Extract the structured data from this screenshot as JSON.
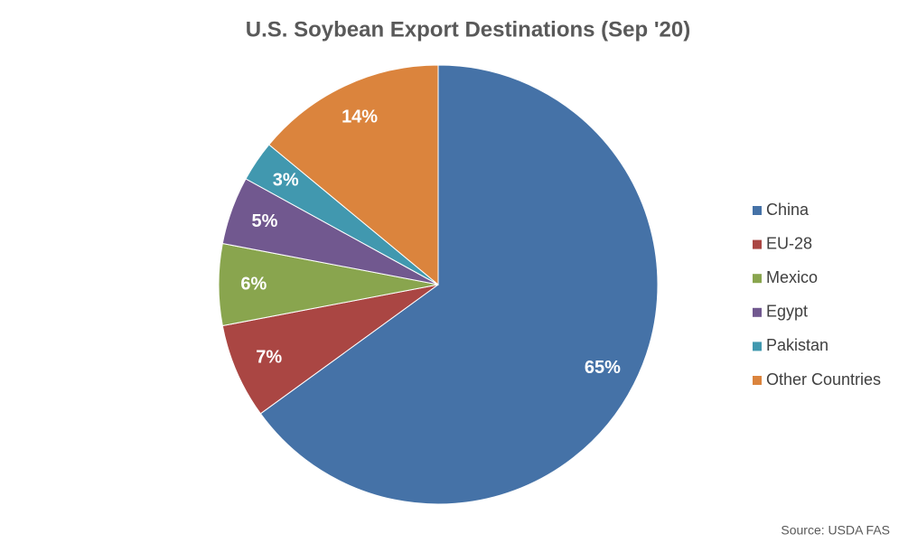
{
  "chart_data": {
    "type": "pie",
    "title": "U.S. Soybean Export Destinations (Sep '20)",
    "categories": [
      "China",
      "EU-28",
      "Mexico",
      "Egypt",
      "Pakistan",
      "Other Countries"
    ],
    "values": [
      65,
      7,
      6,
      5,
      3,
      14
    ],
    "value_labels": [
      "65%",
      "7%",
      "6%",
      "5%",
      "3%",
      "14%"
    ],
    "colors": [
      "#4572a7",
      "#aa4643",
      "#89a54e",
      "#71588f",
      "#4198af",
      "#db843d"
    ],
    "legend": "right",
    "source": "Source: USDA FAS"
  }
}
